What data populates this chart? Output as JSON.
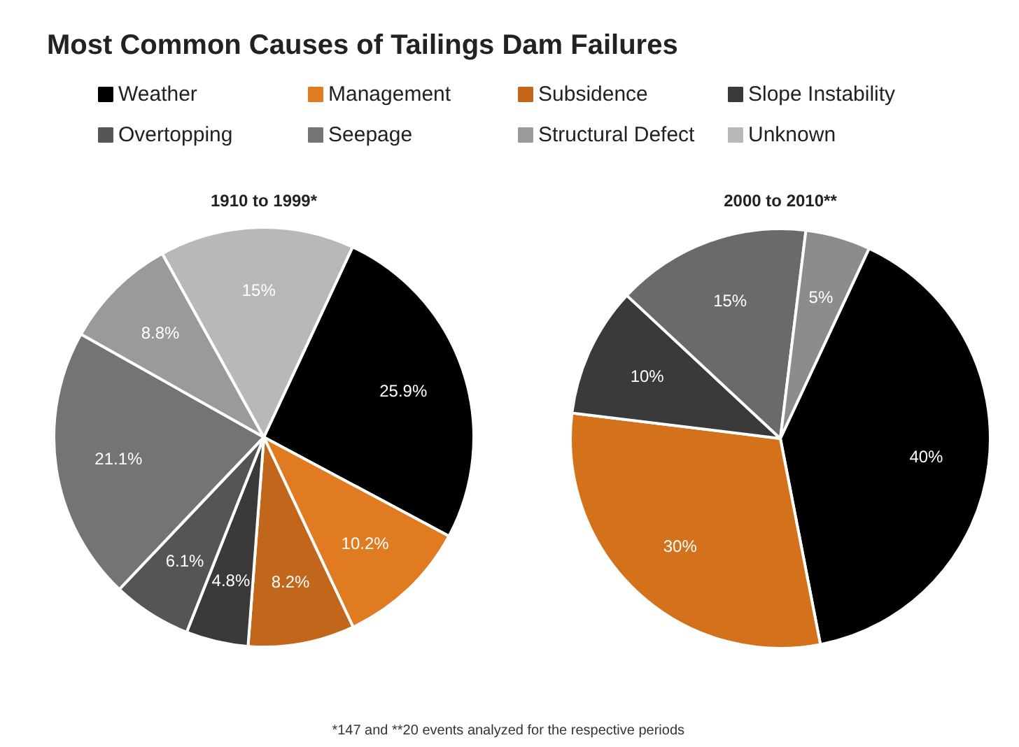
{
  "chart_data": [
    {
      "type": "pie",
      "title": "Most Common Causes of Tailings Dam Failures",
      "subtitle": "1910 to 1999*",
      "legend": "top",
      "categories": [
        "Weather",
        "Management",
        "Subsidence",
        "Slope Instability",
        "Overtopping",
        "Seepage",
        "Structural Defect",
        "Unknown"
      ],
      "values": [
        25.9,
        10.2,
        8.2,
        4.8,
        6.1,
        21.1,
        8.8,
        15
      ],
      "value_labels": [
        "25.9%",
        "10.2%",
        "8.2%",
        "4.8%",
        "6.1%",
        "21.1%",
        "8.8%",
        "15%"
      ],
      "colors": [
        "#000000",
        "#e07b22",
        "#c2661c",
        "#3a3a3a",
        "#555555",
        "#747474",
        "#9a9a9a",
        "#b8b8b8"
      ]
    },
    {
      "type": "pie",
      "subtitle": "2000 to 2010**",
      "categories": [
        null,
        null,
        null,
        null,
        null
      ],
      "values": [
        40,
        30,
        10,
        15,
        5
      ],
      "value_labels": [
        "40%",
        "30%",
        "10%",
        "15%",
        "5%"
      ],
      "colors": [
        "#000000",
        "#d4721c",
        "#3a3a3a",
        "#6a6a6a",
        "#8c8c8c"
      ],
      "annotations": [
        "*147 and **20  events analyzed for the respective periods"
      ]
    }
  ]
}
